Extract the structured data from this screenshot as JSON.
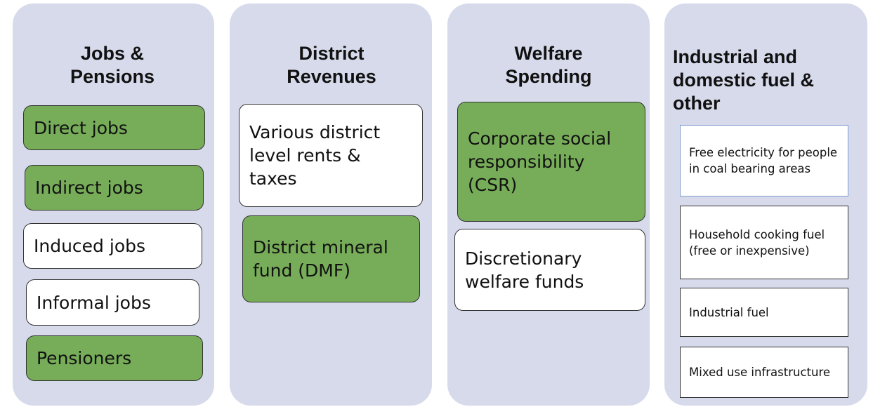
{
  "columns": [
    {
      "title": "Jobs & Pensions",
      "items": [
        {
          "label": "Direct jobs",
          "fill": "#77ad59"
        },
        {
          "label": "Indirect jobs",
          "fill": "#77ad59"
        },
        {
          "label": "Induced jobs",
          "fill": "#ffffff"
        },
        {
          "label": "Informal jobs",
          "fill": "#ffffff"
        },
        {
          "label": "Pensioners",
          "fill": "#77ad59"
        }
      ]
    },
    {
      "title": "District Revenues",
      "items": [
        {
          "label": "Various district level rents & taxes",
          "fill": "#ffffff"
        },
        {
          "label": "District mineral fund (DMF)",
          "fill": "#77ad59"
        }
      ]
    },
    {
      "title": "Welfare Spending",
      "items": [
        {
          "label": "Corporate social responsibility (CSR)",
          "fill": "#77ad59"
        },
        {
          "label": "Discretionary welfare funds",
          "fill": "#ffffff"
        }
      ]
    },
    {
      "title": "Industrial and domestic fuel & other",
      "items": [
        {
          "label": "Free electricity for people in coal bearing areas",
          "fill": "#ffffff"
        },
        {
          "label": "Household cooking fuel (free or inexpensive)",
          "fill": "#ffffff"
        },
        {
          "label": "Industrial fuel",
          "fill": "#ffffff"
        },
        {
          "label": "Mixed use infrastructure",
          "fill": "#ffffff"
        }
      ]
    }
  ]
}
